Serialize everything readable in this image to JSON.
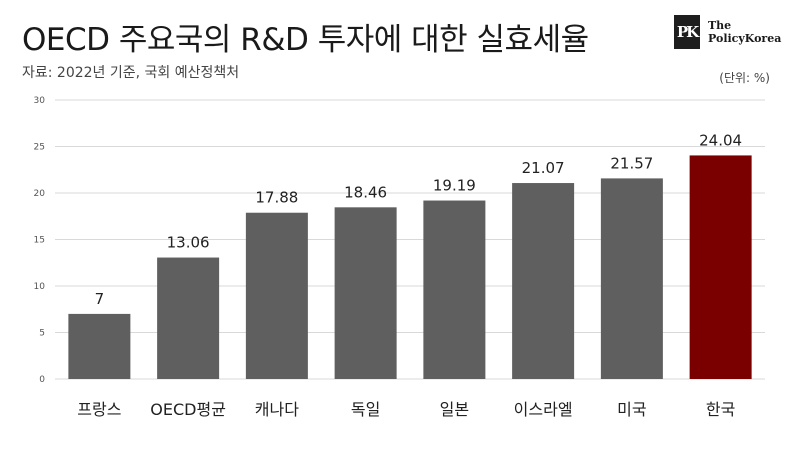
{
  "header": {
    "title": "OECD 주요국의 R&D 투자에 대한 실효세율",
    "source": "자료: 2022년 기준, 국회 예산정책처",
    "unit": "(단위: %)"
  },
  "logo": {
    "mark": "PK",
    "line1": "The",
    "line2": "PolicyKorea"
  },
  "chart_data": {
    "type": "bar",
    "title": "OECD 주요국의 R&D 투자에 대한 실효세율",
    "xlabel": "",
    "ylabel": "",
    "unit": "%",
    "categories": [
      "프랑스",
      "OECD평균",
      "캐나다",
      "독일",
      "일본",
      "이스라엘",
      "미국",
      "한국"
    ],
    "values": [
      7,
      13.06,
      17.88,
      18.46,
      19.19,
      21.07,
      21.57,
      24.04
    ],
    "value_labels": [
      "7",
      "13.06",
      "17.88",
      "18.46",
      "19.19",
      "21.07",
      "21.57",
      "24.04"
    ],
    "ylim": [
      0,
      30
    ],
    "yticks": [
      0,
      5,
      10,
      15,
      20,
      25,
      30
    ],
    "grid": true,
    "legend": "none",
    "colors": {
      "bar": "#5f5f5f",
      "highlight": "#7a0000",
      "highlight_category": "한국",
      "grid": "#d9d9d9"
    }
  }
}
